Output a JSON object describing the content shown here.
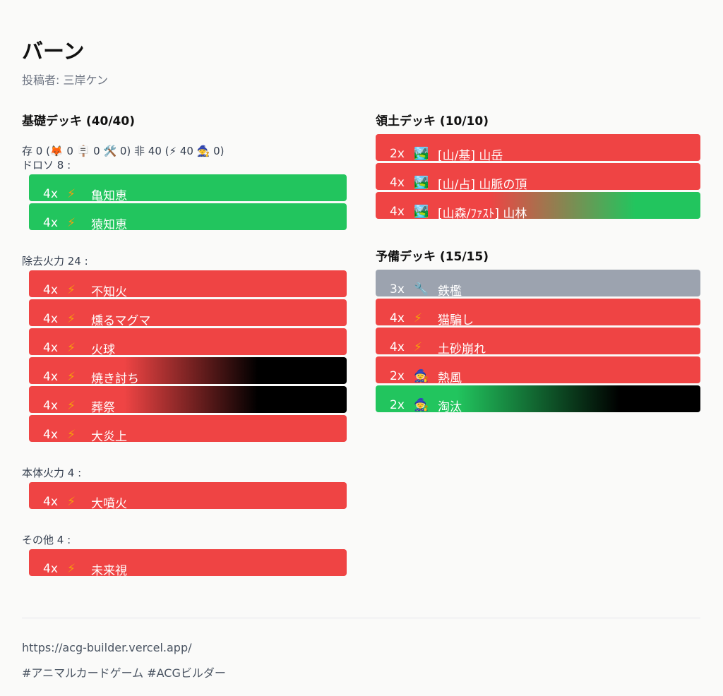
{
  "title": "バーン",
  "author": "投稿者: 三岸ケン",
  "basic_deck": {
    "title": "基礎デッキ",
    "count": "(40/40)",
    "summary": "存 0 (🦊 0 🪧 0 🛠️ 0) 非 40 (⚡ 40 🧙 0)",
    "groups": [
      {
        "label": "ドロソ 8 :",
        "cards": [
          {
            "qty": "4x",
            "icon": "⚡",
            "name": "亀知恵",
            "color": "green"
          },
          {
            "qty": "4x",
            "icon": "⚡",
            "name": "猿知恵",
            "color": "green"
          }
        ]
      },
      {
        "label": "除去火力 24 :",
        "cards": [
          {
            "qty": "4x",
            "icon": "⚡",
            "name": "不知火",
            "color": "red"
          },
          {
            "qty": "4x",
            "icon": "⚡",
            "name": "燻るマグマ",
            "color": "red"
          },
          {
            "qty": "4x",
            "icon": "⚡",
            "name": "火球",
            "color": "red"
          },
          {
            "qty": "4x",
            "icon": "⚡",
            "name": "焼き討ち",
            "color": "red-black"
          },
          {
            "qty": "4x",
            "icon": "⚡",
            "name": "葬祭",
            "color": "red-black"
          },
          {
            "qty": "4x",
            "icon": "⚡",
            "name": "大炎上",
            "color": "red"
          }
        ]
      },
      {
        "label": "本体火力 4 :",
        "cards": [
          {
            "qty": "4x",
            "icon": "⚡",
            "name": "大噴火",
            "color": "red"
          }
        ]
      },
      {
        "label": "その他 4 :",
        "cards": [
          {
            "qty": "4x",
            "icon": "⚡",
            "name": "未来視",
            "color": "red"
          }
        ]
      }
    ]
  },
  "territory_deck": {
    "title": "領土デッキ",
    "count": "(10/10)",
    "cards": [
      {
        "qty": "2x",
        "icon": "🏞️",
        "name": "[山/基] 山岳",
        "color": "red"
      },
      {
        "qty": "4x",
        "icon": "🏞️",
        "name": "[山/占] 山脈の頂",
        "color": "red"
      },
      {
        "qty": "4x",
        "icon": "🏞️",
        "name": "[山森/ﾌｧｽﾄ] 山林",
        "color": "red-green"
      }
    ]
  },
  "reserve_deck": {
    "title": "予備デッキ",
    "count": "(15/15)",
    "cards": [
      {
        "qty": "3x",
        "icon": "🔧",
        "name": "鉄檻",
        "color": "gray"
      },
      {
        "qty": "4x",
        "icon": "⚡",
        "name": "猫騙し",
        "color": "red"
      },
      {
        "qty": "4x",
        "icon": "⚡",
        "name": "土砂崩れ",
        "color": "red"
      },
      {
        "qty": "2x",
        "icon": "🧙",
        "name": "熱風",
        "color": "red"
      },
      {
        "qty": "2x",
        "icon": "🧙",
        "name": "淘汰",
        "color": "green-black"
      }
    ]
  },
  "footer": {
    "url": "https://acg-builder.vercel.app/",
    "tags": "#アニマルカードゲーム #ACGビルダー"
  }
}
